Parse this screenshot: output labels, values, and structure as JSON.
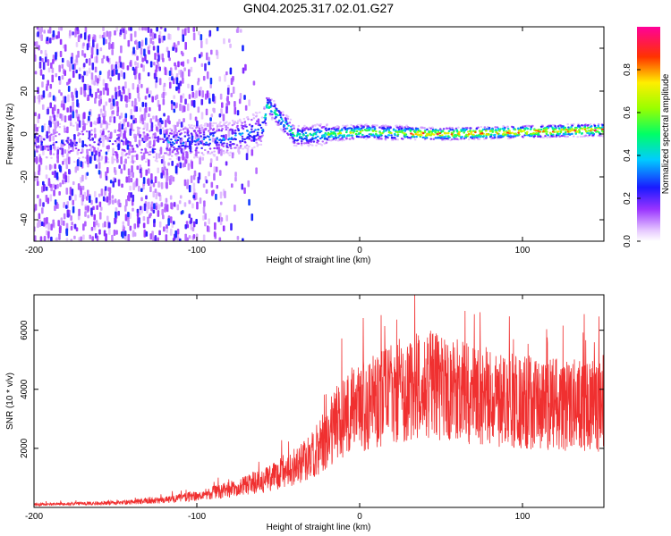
{
  "title": "GN04.2025.317.02.01.G27",
  "chart_data": [
    {
      "type": "heatmap",
      "name": "spectrogram",
      "xlabel": "Height of straight line (km)",
      "ylabel": "Frequency (Hz)",
      "xlim": [
        -200,
        150
      ],
      "ylim": [
        -50,
        50
      ],
      "x_ticks": [
        -200,
        -100,
        0,
        100
      ],
      "y_ticks": [
        -40,
        -20,
        0,
        20,
        40
      ],
      "ridge": [
        {
          "x": -120,
          "y": -4
        },
        {
          "x": -100,
          "y": -3
        },
        {
          "x": -80,
          "y": -2
        },
        {
          "x": -60,
          "y": 3
        },
        {
          "x": -57,
          "y": 14
        },
        {
          "x": -40,
          "y": -1
        },
        {
          "x": -20,
          "y": 0
        },
        {
          "x": 0,
          "y": 1
        },
        {
          "x": 50,
          "y": 0
        },
        {
          "x": 100,
          "y": 1
        },
        {
          "x": 150,
          "y": 2
        }
      ],
      "colorbar": {
        "label": "Normalized spectral amplitude",
        "range": [
          0,
          1
        ],
        "ticks": [
          "0.0",
          "0.2",
          "0.4",
          "0.6",
          "0.8"
        ]
      }
    },
    {
      "type": "line",
      "name": "snr",
      "xlabel": "Height of straight line (km)",
      "ylabel": "SNR (10 * v/v)",
      "xlim": [
        -200,
        150
      ],
      "ylim": [
        0,
        7200
      ],
      "x_ticks": [
        -200,
        -100,
        0,
        100
      ],
      "y_ticks": [
        2000,
        4000,
        6000
      ],
      "color": "#f03030",
      "envelope": [
        {
          "x": -200,
          "y": 100
        },
        {
          "x": -150,
          "y": 150
        },
        {
          "x": -120,
          "y": 250
        },
        {
          "x": -100,
          "y": 400
        },
        {
          "x": -80,
          "y": 600
        },
        {
          "x": -60,
          "y": 900
        },
        {
          "x": -40,
          "y": 1300
        },
        {
          "x": -25,
          "y": 2000
        },
        {
          "x": -15,
          "y": 2800
        },
        {
          "x": 0,
          "y": 3400
        },
        {
          "x": 20,
          "y": 3900
        },
        {
          "x": 40,
          "y": 4200
        },
        {
          "x": 60,
          "y": 3900
        },
        {
          "x": 80,
          "y": 3700
        },
        {
          "x": 100,
          "y": 3600
        },
        {
          "x": 120,
          "y": 3500
        },
        {
          "x": 150,
          "y": 3400
        }
      ]
    }
  ]
}
